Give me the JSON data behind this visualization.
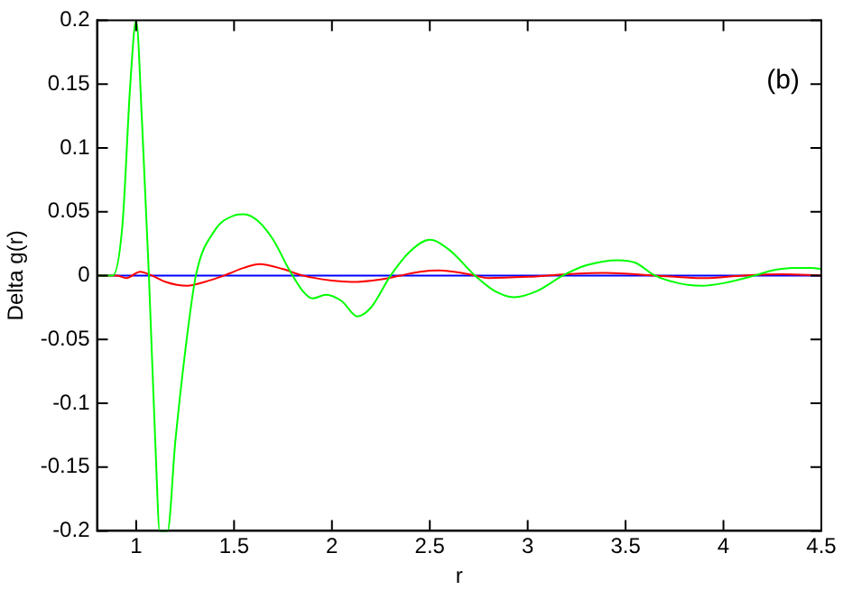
{
  "chart_data": {
    "type": "line",
    "xlabel": "r",
    "ylabel": "Delta g(r)",
    "annotations": [
      "(b)"
    ],
    "xlim": [
      0.8,
      4.5
    ],
    "xticks": [
      1,
      1.5,
      2,
      2.5,
      3,
      3.5,
      4,
      4.5
    ],
    "ylim": [
      -0.2,
      0.2
    ],
    "yticks": [
      -0.2,
      -0.15,
      -0.1,
      -0.05,
      0,
      0.05,
      0.1,
      0.15,
      0.2
    ],
    "grid": false,
    "legend": false,
    "marker": "none",
    "line_style": "solid",
    "series": [
      {
        "color": "#00ff00",
        "x": [
          0.8,
          0.88,
          0.93,
          0.97,
          1.0,
          1.03,
          1.065,
          1.1,
          1.12,
          1.16,
          1.2,
          1.25,
          1.305,
          1.4,
          1.5,
          1.55,
          1.62,
          1.7,
          1.78,
          1.85,
          1.9,
          1.97,
          2.05,
          2.13,
          2.2,
          2.3,
          2.4,
          2.5,
          2.6,
          2.73,
          2.83,
          2.93,
          3.05,
          3.18,
          3.3,
          3.46,
          3.55,
          3.65,
          3.77,
          3.89,
          4.0,
          4.16,
          4.25,
          4.36,
          4.45,
          4.5
        ],
        "values": [
          0,
          0,
          0.04,
          0.15,
          0.2,
          0.12,
          0,
          -0.14,
          -0.2,
          -0.2,
          -0.13,
          -0.06,
          0,
          0.035,
          0.047,
          0.048,
          0.043,
          0.028,
          0.005,
          -0.012,
          -0.018,
          -0.015,
          -0.02,
          -0.032,
          -0.025,
          0,
          0.019,
          0.028,
          0.02,
          0,
          -0.012,
          -0.017,
          -0.012,
          0,
          0.008,
          0.012,
          0.01,
          0,
          -0.006,
          -0.008,
          -0.006,
          0,
          0.004,
          0.006,
          0.006,
          0.005
        ]
      },
      {
        "color": "#ff0000",
        "x": [
          0.8,
          0.9,
          0.95,
          1.02,
          1.08,
          1.15,
          1.26,
          1.35,
          1.45,
          1.55,
          1.63,
          1.75,
          1.85,
          2.0,
          2.1,
          2.25,
          2.35,
          2.45,
          2.55,
          2.7,
          2.8,
          3.0,
          3.2,
          3.4,
          3.65,
          3.9,
          4.1,
          4.3,
          4.5
        ],
        "values": [
          0,
          0,
          -0.002,
          0.003,
          0,
          -0.005,
          -0.008,
          -0.005,
          0,
          0.006,
          0.009,
          0.005,
          0,
          -0.004,
          -0.005,
          -0.003,
          0,
          0.003,
          0.004,
          0.001,
          -0.002,
          -0.001,
          0.001,
          0.002,
          0,
          -0.002,
          0,
          0.001,
          0
        ]
      },
      {
        "color": "#0000ff",
        "x": [
          0.8,
          1.5,
          2.0,
          2.5,
          3.0,
          3.5,
          4.0,
          4.5
        ],
        "values": [
          0,
          0,
          0,
          0,
          0,
          0,
          0,
          0
        ]
      }
    ]
  }
}
